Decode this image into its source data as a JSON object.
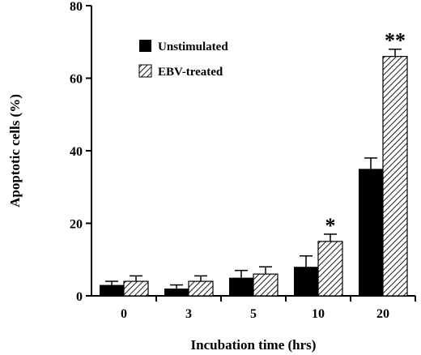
{
  "chart_data": {
    "type": "bar",
    "xlabel": "Incubation time (hrs)",
    "ylabel": "Apoptotic cells (%)",
    "ylim": [
      0,
      80
    ],
    "yticks": [
      0,
      20,
      40,
      60,
      80
    ],
    "categories": [
      "0",
      "3",
      "5",
      "10",
      "20"
    ],
    "series": [
      {
        "name": "Unstimulated",
        "fill": "solid",
        "color": "#000000",
        "values": [
          3,
          2,
          5,
          8,
          35
        ],
        "errors": [
          1,
          1,
          2,
          3,
          3
        ]
      },
      {
        "name": "EBV-treated",
        "fill": "hatched",
        "color": "#000000",
        "values": [
          4,
          4,
          6,
          15,
          66
        ],
        "errors": [
          1.5,
          1.5,
          2,
          2,
          2
        ]
      }
    ],
    "annotations": [
      {
        "category": "10",
        "series": "EBV-treated",
        "text": "*"
      },
      {
        "category": "20",
        "series": "EBV-treated",
        "text": "**"
      }
    ],
    "legend_position": "top-left"
  }
}
